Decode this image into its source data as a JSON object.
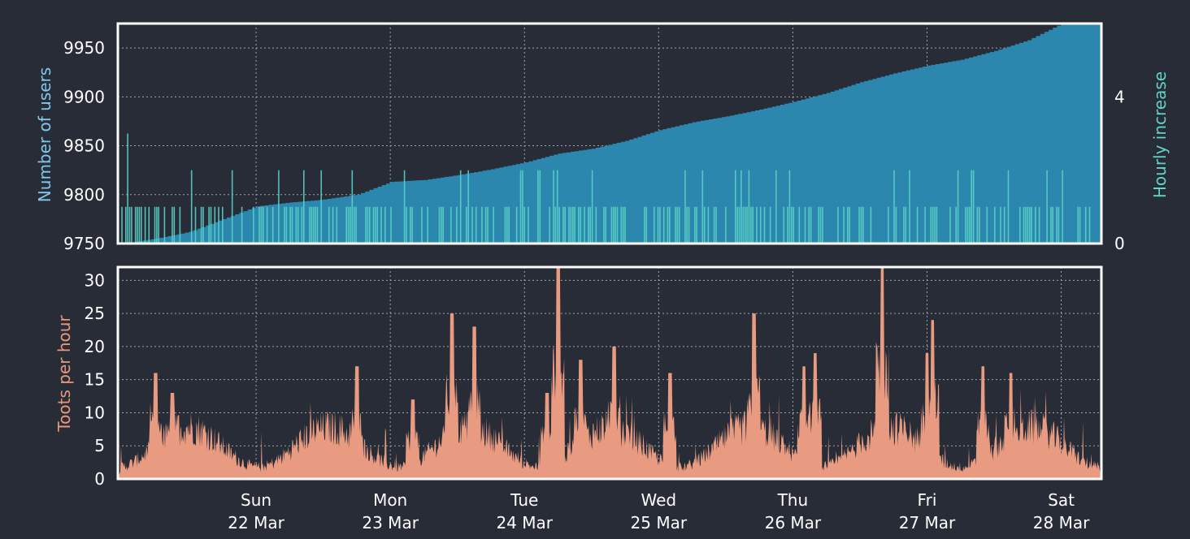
{
  "chart_data": [
    {
      "type": "area",
      "ylabel": "Number of users",
      "y2label": "Hourly increase",
      "x_range": [
        "2020-03-21 00:00",
        "2020-03-28 00:00"
      ],
      "ylim": [
        9750,
        9975
      ],
      "yticks": [
        9750,
        9800,
        9850,
        9900,
        9950
      ],
      "y2lim": [
        0,
        6
      ],
      "y2ticks": [
        0,
        4
      ],
      "grid": true,
      "series": [
        {
          "name": "",
          "axis": "left",
          "style": "step-area",
          "x": [
            "2020-03-21 00:00",
            "2020-03-21 06:00",
            "2020-03-21 12:00",
            "2020-03-21 18:00",
            "2020-03-22 00:00",
            "2020-03-22 06:00",
            "2020-03-22 12:00",
            "2020-03-22 18:00",
            "2020-03-23 00:00",
            "2020-03-23 06:00",
            "2020-03-23 12:00",
            "2020-03-23 18:00",
            "2020-03-24 00:00",
            "2020-03-24 06:00",
            "2020-03-24 12:00",
            "2020-03-24 18:00",
            "2020-03-25 00:00",
            "2020-03-25 06:00",
            "2020-03-25 12:00",
            "2020-03-25 18:00",
            "2020-03-26 00:00",
            "2020-03-26 06:00",
            "2020-03-26 12:00",
            "2020-03-26 18:00",
            "2020-03-27 00:00",
            "2020-03-27 06:00",
            "2020-03-27 12:00",
            "2020-03-27 18:00",
            "2020-03-28 00:00"
          ],
          "values": [
            9750,
            9755,
            9762,
            9775,
            9788,
            9792,
            9795,
            9800,
            9813,
            9815,
            9820,
            9826,
            9833,
            9842,
            9847,
            9855,
            9866,
            9874,
            9880,
            9887,
            9895,
            9904,
            9915,
            9924,
            9932,
            9938,
            9947,
            9958,
            9975
          ]
        },
        {
          "name": "",
          "axis": "right",
          "style": "bars",
          "x": [
            "2020-03-21 00:00",
            "2020-03-28 00:00"
          ],
          "values_range": [
            0,
            3
          ],
          "peak_values": [
            3,
            2,
            1,
            1
          ]
        }
      ]
    },
    {
      "type": "area",
      "ylabel": "Toots per hour",
      "x_range": [
        "2020-03-21 00:00",
        "2020-03-28 00:00"
      ],
      "ylim": [
        0,
        32
      ],
      "yticks": [
        0,
        5,
        10,
        15,
        20,
        25,
        30
      ],
      "grid": true,
      "xticks": [
        {
          "x": "2020-03-22 00:00",
          "day": "Sun",
          "date": "22 Mar"
        },
        {
          "x": "2020-03-23 00:00",
          "day": "Mon",
          "date": "23 Mar"
        },
        {
          "x": "2020-03-24 00:00",
          "day": "Tue",
          "date": "24 Mar"
        },
        {
          "x": "2020-03-25 00:00",
          "day": "Wed",
          "date": "25 Mar"
        },
        {
          "x": "2020-03-26 00:00",
          "day": "Thu",
          "date": "26 Mar"
        },
        {
          "x": "2020-03-27 00:00",
          "day": "Fri",
          "date": "27 Mar"
        },
        {
          "x": "2020-03-28 00:00",
          "day": "Sat",
          "date": "28 Mar"
        }
      ],
      "series": [
        {
          "name": "",
          "style": "spiky-area",
          "x": [
            "2020-03-21 06:00",
            "2020-03-21 09:00",
            "2020-03-22 18:00",
            "2020-03-23 04:00",
            "2020-03-23 11:00",
            "2020-03-23 15:00",
            "2020-03-24 04:00",
            "2020-03-24 06:00",
            "2020-03-24 10:00",
            "2020-03-24 16:00",
            "2020-03-25 02:00",
            "2020-03-25 17:00",
            "2020-03-26 02:00",
            "2020-03-26 04:00",
            "2020-03-26 16:00",
            "2020-03-27 00:00",
            "2020-03-27 01:00",
            "2020-03-27 10:00",
            "2020-03-27 15:00"
          ],
          "peak_values": [
            16,
            13,
            17,
            12,
            25,
            23,
            13,
            32,
            18,
            20,
            16,
            25,
            17,
            19,
            32,
            19,
            24,
            17,
            16
          ],
          "baseline_range": [
            1,
            8
          ]
        }
      ]
    }
  ],
  "colors": {
    "background": "#282c37",
    "frame": "#ffffff",
    "grid": "#a0a4ad",
    "users_fill": "#2b87ad",
    "hourly_increase": "#5ad0c6",
    "toots_fill": "#e89b80",
    "users_label": "#7fc8ee",
    "increase_label": "#62d3c7",
    "toots_label": "#e8987c",
    "tick_text": "#ffffff"
  }
}
